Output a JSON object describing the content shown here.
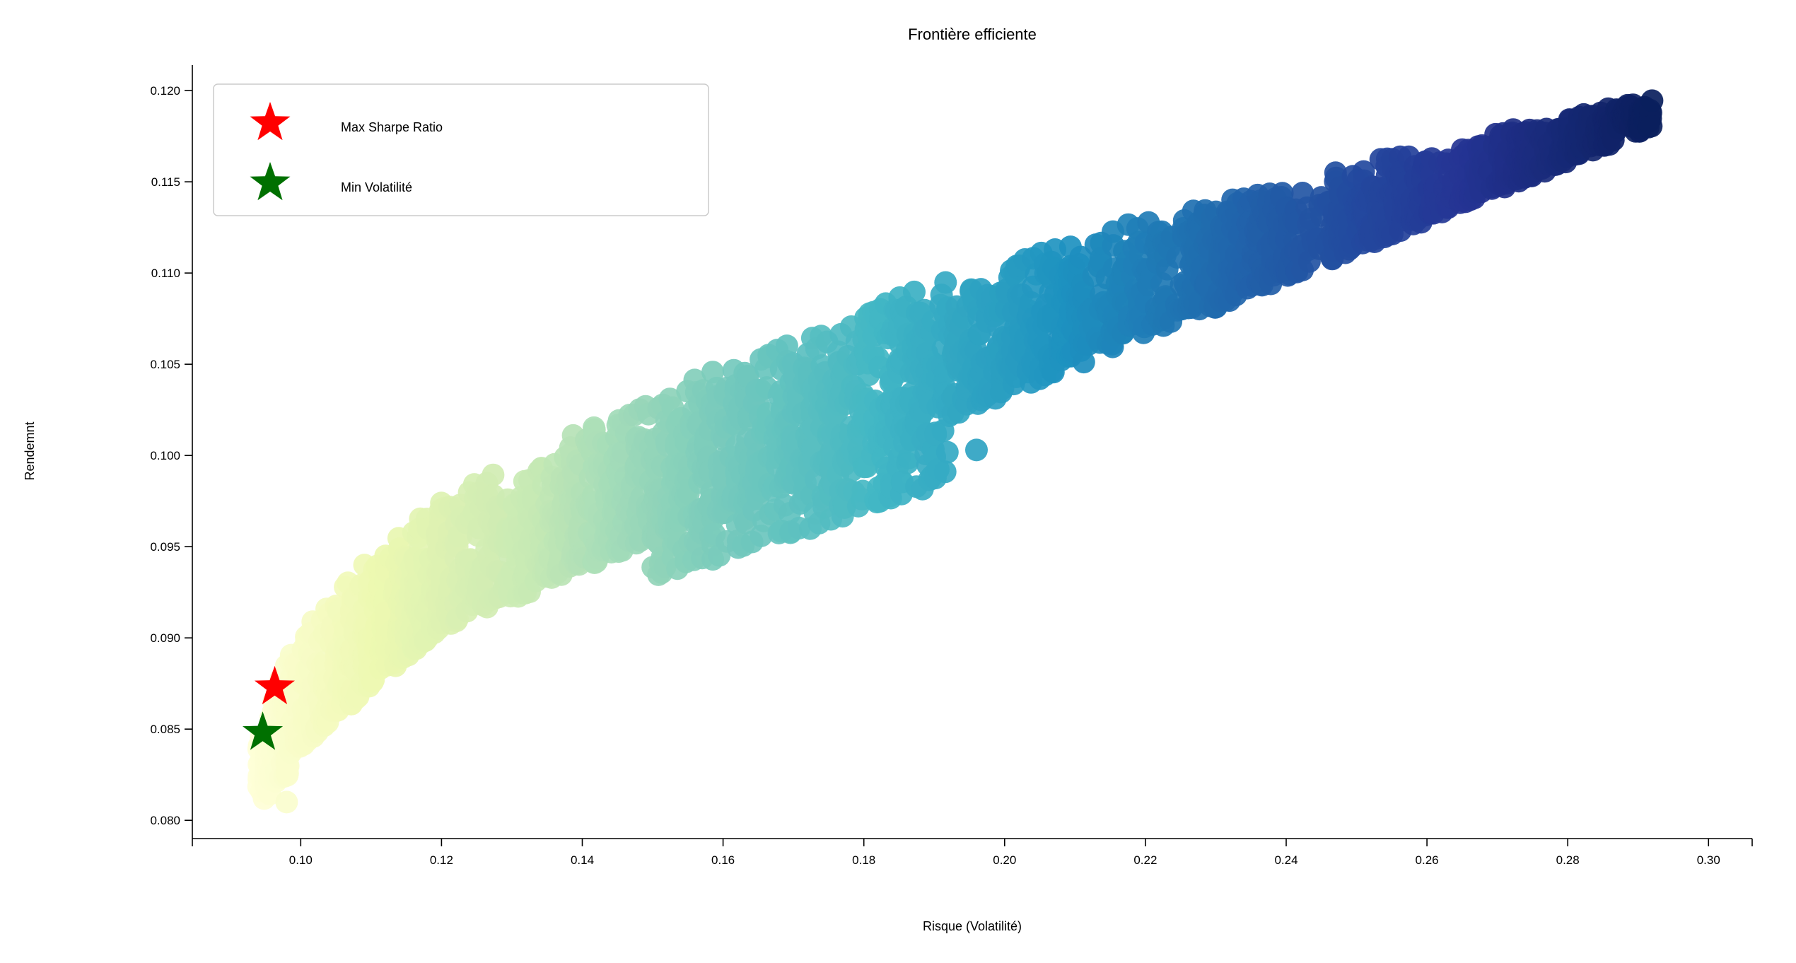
{
  "chart_data": {
    "type": "scatter",
    "title": "Frontière efficiente",
    "xlabel": "Risque (Volatilité)",
    "ylabel": "Rendemnt",
    "xlim": [
      0.085,
      0.306
    ],
    "ylim": [
      0.079,
      0.1214
    ],
    "x_ticks": [
      "0.10",
      "0.12",
      "0.14",
      "0.16",
      "0.18",
      "0.20",
      "0.22",
      "0.24",
      "0.26",
      "0.28",
      "0.30"
    ],
    "y_ticks": [
      "0.080",
      "0.085",
      "0.090",
      "0.095",
      "0.100",
      "0.105",
      "0.110",
      "0.115",
      "0.120"
    ],
    "colormap": [
      "#ffffd9",
      "#edf8b1",
      "#c7e9b4",
      "#7fcdbb",
      "#41b6c4",
      "#1d91c0",
      "#225ea8",
      "#253494",
      "#081d58"
    ],
    "markers": {
      "max_sharpe": {
        "name": "Max Sharpe Ratio",
        "x": 0.0963,
        "y": 0.0873,
        "color": "#ff0000"
      },
      "min_volatility": {
        "name": "Min Volatilité",
        "x": 0.0946,
        "y": 0.0848,
        "color": "#007000"
      }
    },
    "frontier_samples": [
      {
        "x": 0.0952,
        "y": 0.0848
      },
      {
        "x": 0.0965,
        "y": 0.0873
      },
      {
        "x": 0.1,
        "y": 0.0905
      },
      {
        "x": 0.11,
        "y": 0.0945
      },
      {
        "x": 0.12,
        "y": 0.0975
      },
      {
        "x": 0.14,
        "y": 0.1015
      },
      {
        "x": 0.16,
        "y": 0.105
      },
      {
        "x": 0.18,
        "y": 0.108
      },
      {
        "x": 0.2,
        "y": 0.1108
      },
      {
        "x": 0.22,
        "y": 0.113
      },
      {
        "x": 0.24,
        "y": 0.115
      },
      {
        "x": 0.26,
        "y": 0.117
      },
      {
        "x": 0.2945,
        "y": 0.1197
      }
    ],
    "highlighted_points": [
      {
        "x": 0.098,
        "y": 0.081
      },
      {
        "x": 0.196,
        "y": 0.1003
      },
      {
        "x": 0.189,
        "y": 0.1012
      },
      {
        "x": 0.177,
        "y": 0.0975
      },
      {
        "x": 0.281,
        "y": 0.1175
      },
      {
        "x": 0.2895,
        "y": 0.1187
      }
    ],
    "legend_position": "top-left",
    "grid": false
  }
}
